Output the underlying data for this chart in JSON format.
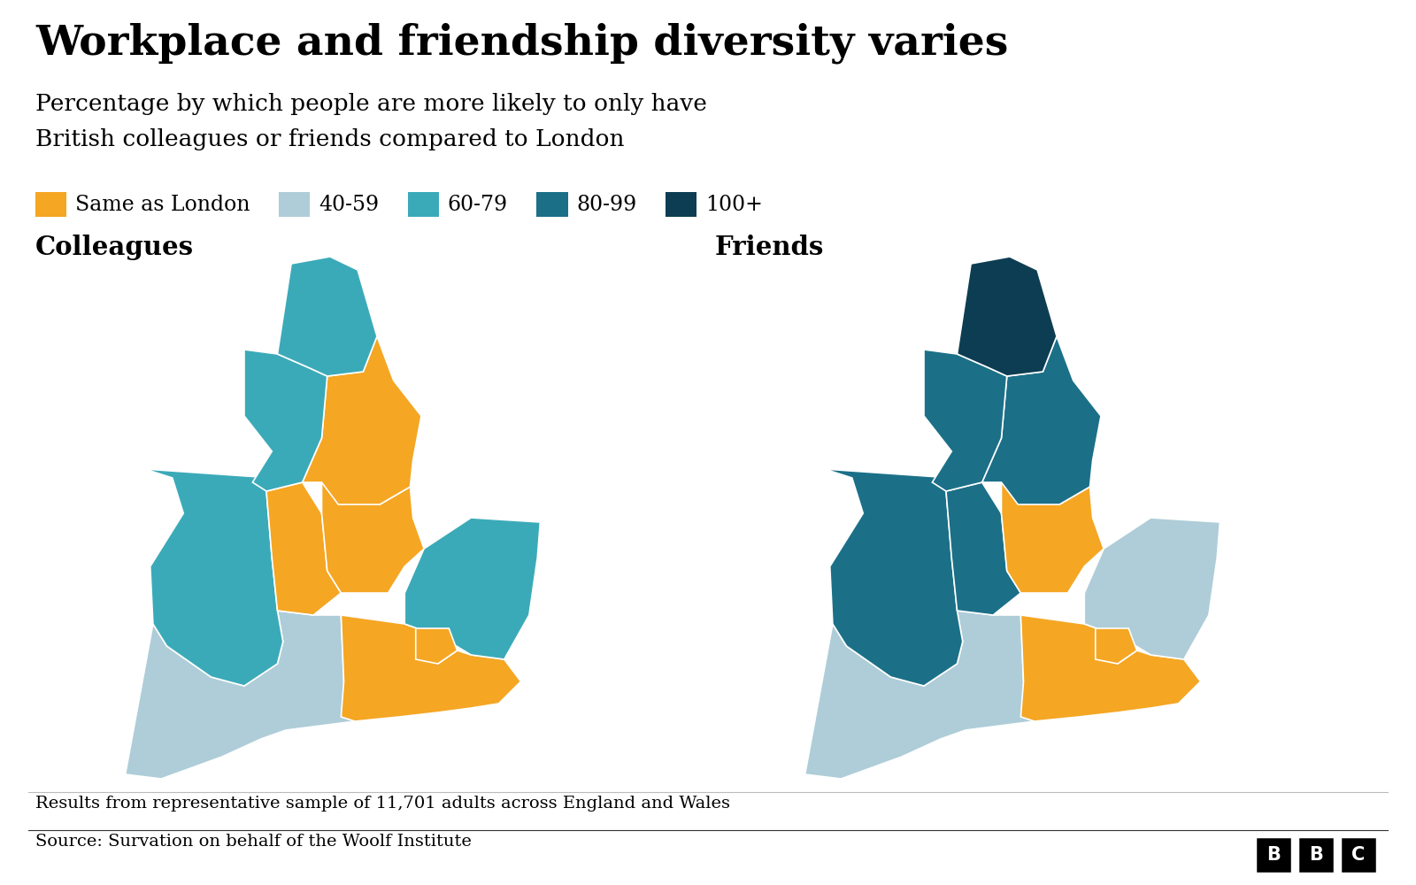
{
  "title": "Workplace and friendship diversity varies",
  "subtitle_line1": "Percentage by which people are more likely to only have",
  "subtitle_line2": "British colleagues or friends compared to London",
  "colleagues_label": "Colleagues",
  "friends_label": "Friends",
  "legend_items": [
    {
      "label": "Same as London",
      "color": "#F5A623"
    },
    {
      "label": "40-59",
      "color": "#AECDD8"
    },
    {
      "label": "60-79",
      "color": "#3BAAB8"
    },
    {
      "label": "80-99",
      "color": "#1B7088"
    },
    {
      "label": "100+",
      "color": "#0D3D52"
    }
  ],
  "colleagues_colors": {
    "North East": "#3BAAB8",
    "North West": "#3BAAB8",
    "Yorkshire": "#F5A623",
    "East Midlands": "#F5A623",
    "West Midlands": "#F5A623",
    "East of England": "#3BAAB8",
    "London": "#F5A623",
    "South East": "#F5A623",
    "South West": "#AECDD8",
    "Wales": "#3BAAB8"
  },
  "friends_colors": {
    "North East": "#0D3D52",
    "North West": "#1B7088",
    "Yorkshire": "#1B7088",
    "East Midlands": "#F5A623",
    "West Midlands": "#1B7088",
    "East of England": "#AECDD8",
    "London": "#F5A623",
    "South East": "#F5A623",
    "South West": "#AECDD8",
    "Wales": "#1B7088"
  },
  "footnote": "Results from representative sample of 11,701 adults across England and Wales",
  "source": "Source: Survation on behalf of the Woolf Institute",
  "background_color": "#FFFFFF",
  "title_color": "#000000"
}
